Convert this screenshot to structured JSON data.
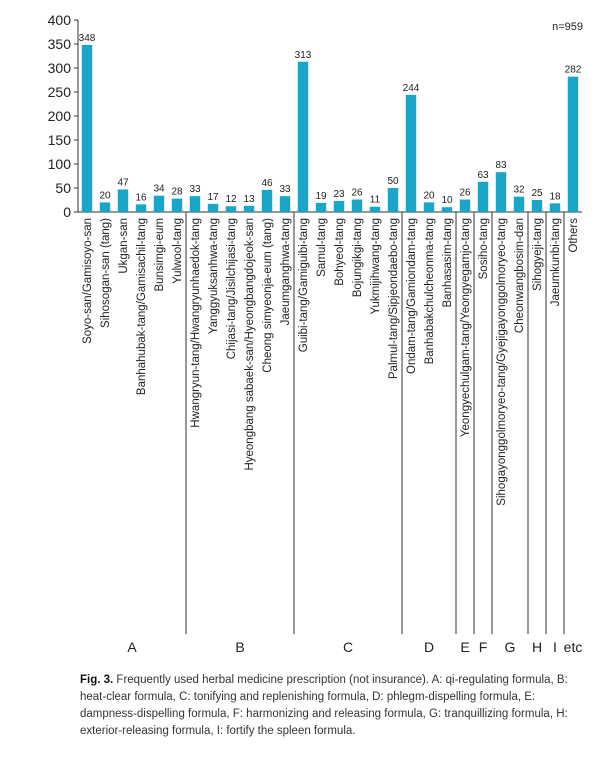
{
  "chart_data": {
    "type": "bar",
    "note": "n=959",
    "ylim": [
      0,
      400
    ],
    "yticks": [
      0,
      50,
      100,
      150,
      200,
      250,
      300,
      350,
      400
    ],
    "bar_color": "#1aa6c8",
    "categories": [
      "Soyo-san/Gamisoyo-san",
      "Sihosogan-san (tang)",
      "Ukgan-san",
      "Banhahubak-tang/Gamisachil-tang",
      "Bunsimgi-eum",
      "Yulwool-tang",
      "Hwangryun-tang/Hwangryunhaedok-tang",
      "Yanggyuksanhwa-tang",
      "Chijasi-tang/Jisilchijasi-tang",
      "Hyeongbang sabaek-san/Hyeongbangdojeok-san",
      "Cheong simyeonja-eum (tang)",
      "Jaeumganghwa-tang",
      "Guibi-tang/Gamiguibi-tang",
      "Samul-tang",
      "Bohyeol-tang",
      "Bojungikgi-tang",
      "Yukmijihwang-tang",
      "Palmul-tang/Sipjeondaebo-tang",
      "Ondam-tang/Gamiondam-tang",
      "Banhabakchulcheonma-tang",
      "Banhasasim-tang",
      "Yeongyechulgam-tang/Yeongyegamjo-tang",
      "Sosiho-tang",
      "Sihogayonggolmoryeo-tang/Gyejigayonggolmoryeo-tang",
      "Cheonwangbosim-dan",
      "Sihogyeji-tang",
      "Jaeumkunbi-tang",
      "Others"
    ],
    "values": [
      348,
      20,
      47,
      16,
      34,
      28,
      33,
      17,
      12,
      13,
      46,
      33,
      313,
      19,
      23,
      26,
      11,
      50,
      244,
      20,
      10,
      26,
      63,
      83,
      32,
      25,
      18,
      282
    ],
    "groups": [
      {
        "label": "A",
        "start": 0,
        "end": 5
      },
      {
        "label": "B",
        "start": 6,
        "end": 11
      },
      {
        "label": "C",
        "start": 12,
        "end": 17
      },
      {
        "label": "D",
        "start": 18,
        "end": 20
      },
      {
        "label": "E",
        "start": 21,
        "end": 21
      },
      {
        "label": "F",
        "start": 22,
        "end": 22
      },
      {
        "label": "G",
        "start": 23,
        "end": 24
      },
      {
        "label": "H",
        "start": 25,
        "end": 25
      },
      {
        "label": "I",
        "start": 26,
        "end": 26
      },
      {
        "label": "etc",
        "start": 27,
        "end": 27
      }
    ]
  },
  "caption": {
    "lead": "Fig. 3.",
    "text": " Frequently used herbal medicine prescription (not insurance). A: qi-regulating formula, B: heat-clear formula, C: tonifying and replenishing formula, D: phlegm-dispelling formula, E: dampness-dispelling formula, F: harmonizing and releasing formula, G: tranquillizing formula, H: exterior-releasing formula, I: fortify the spleen formula."
  }
}
